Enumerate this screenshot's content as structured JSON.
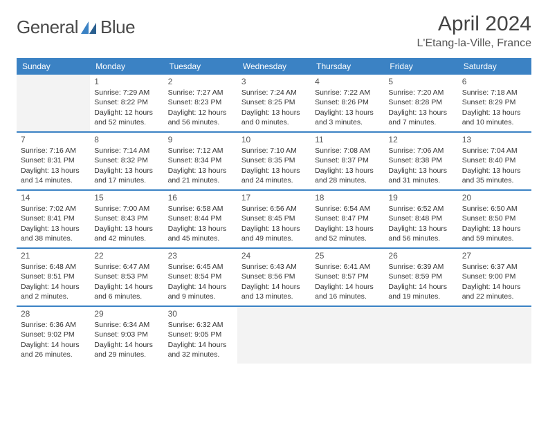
{
  "logo": {
    "word1": "General",
    "word2": "Blue"
  },
  "title": "April 2024",
  "location": "L'Etang-la-Ville, France",
  "colors": {
    "accent": "#3b82c4",
    "text": "#333333",
    "muted": "#555555",
    "empty_bg": "#f3f3f3"
  },
  "day_headers": [
    "Sunday",
    "Monday",
    "Tuesday",
    "Wednesday",
    "Thursday",
    "Friday",
    "Saturday"
  ],
  "weeks": [
    [
      {
        "empty": true
      },
      {
        "n": "1",
        "sr": "Sunrise: 7:29 AM",
        "ss": "Sunset: 8:22 PM",
        "dl": "Daylight: 12 hours and 52 minutes."
      },
      {
        "n": "2",
        "sr": "Sunrise: 7:27 AM",
        "ss": "Sunset: 8:23 PM",
        "dl": "Daylight: 12 hours and 56 minutes."
      },
      {
        "n": "3",
        "sr": "Sunrise: 7:24 AM",
        "ss": "Sunset: 8:25 PM",
        "dl": "Daylight: 13 hours and 0 minutes."
      },
      {
        "n": "4",
        "sr": "Sunrise: 7:22 AM",
        "ss": "Sunset: 8:26 PM",
        "dl": "Daylight: 13 hours and 3 minutes."
      },
      {
        "n": "5",
        "sr": "Sunrise: 7:20 AM",
        "ss": "Sunset: 8:28 PM",
        "dl": "Daylight: 13 hours and 7 minutes."
      },
      {
        "n": "6",
        "sr": "Sunrise: 7:18 AM",
        "ss": "Sunset: 8:29 PM",
        "dl": "Daylight: 13 hours and 10 minutes."
      }
    ],
    [
      {
        "n": "7",
        "sr": "Sunrise: 7:16 AM",
        "ss": "Sunset: 8:31 PM",
        "dl": "Daylight: 13 hours and 14 minutes."
      },
      {
        "n": "8",
        "sr": "Sunrise: 7:14 AM",
        "ss": "Sunset: 8:32 PM",
        "dl": "Daylight: 13 hours and 17 minutes."
      },
      {
        "n": "9",
        "sr": "Sunrise: 7:12 AM",
        "ss": "Sunset: 8:34 PM",
        "dl": "Daylight: 13 hours and 21 minutes."
      },
      {
        "n": "10",
        "sr": "Sunrise: 7:10 AM",
        "ss": "Sunset: 8:35 PM",
        "dl": "Daylight: 13 hours and 24 minutes."
      },
      {
        "n": "11",
        "sr": "Sunrise: 7:08 AM",
        "ss": "Sunset: 8:37 PM",
        "dl": "Daylight: 13 hours and 28 minutes."
      },
      {
        "n": "12",
        "sr": "Sunrise: 7:06 AM",
        "ss": "Sunset: 8:38 PM",
        "dl": "Daylight: 13 hours and 31 minutes."
      },
      {
        "n": "13",
        "sr": "Sunrise: 7:04 AM",
        "ss": "Sunset: 8:40 PM",
        "dl": "Daylight: 13 hours and 35 minutes."
      }
    ],
    [
      {
        "n": "14",
        "sr": "Sunrise: 7:02 AM",
        "ss": "Sunset: 8:41 PM",
        "dl": "Daylight: 13 hours and 38 minutes."
      },
      {
        "n": "15",
        "sr": "Sunrise: 7:00 AM",
        "ss": "Sunset: 8:43 PM",
        "dl": "Daylight: 13 hours and 42 minutes."
      },
      {
        "n": "16",
        "sr": "Sunrise: 6:58 AM",
        "ss": "Sunset: 8:44 PM",
        "dl": "Daylight: 13 hours and 45 minutes."
      },
      {
        "n": "17",
        "sr": "Sunrise: 6:56 AM",
        "ss": "Sunset: 8:45 PM",
        "dl": "Daylight: 13 hours and 49 minutes."
      },
      {
        "n": "18",
        "sr": "Sunrise: 6:54 AM",
        "ss": "Sunset: 8:47 PM",
        "dl": "Daylight: 13 hours and 52 minutes."
      },
      {
        "n": "19",
        "sr": "Sunrise: 6:52 AM",
        "ss": "Sunset: 8:48 PM",
        "dl": "Daylight: 13 hours and 56 minutes."
      },
      {
        "n": "20",
        "sr": "Sunrise: 6:50 AM",
        "ss": "Sunset: 8:50 PM",
        "dl": "Daylight: 13 hours and 59 minutes."
      }
    ],
    [
      {
        "n": "21",
        "sr": "Sunrise: 6:48 AM",
        "ss": "Sunset: 8:51 PM",
        "dl": "Daylight: 14 hours and 2 minutes."
      },
      {
        "n": "22",
        "sr": "Sunrise: 6:47 AM",
        "ss": "Sunset: 8:53 PM",
        "dl": "Daylight: 14 hours and 6 minutes."
      },
      {
        "n": "23",
        "sr": "Sunrise: 6:45 AM",
        "ss": "Sunset: 8:54 PM",
        "dl": "Daylight: 14 hours and 9 minutes."
      },
      {
        "n": "24",
        "sr": "Sunrise: 6:43 AM",
        "ss": "Sunset: 8:56 PM",
        "dl": "Daylight: 14 hours and 13 minutes."
      },
      {
        "n": "25",
        "sr": "Sunrise: 6:41 AM",
        "ss": "Sunset: 8:57 PM",
        "dl": "Daylight: 14 hours and 16 minutes."
      },
      {
        "n": "26",
        "sr": "Sunrise: 6:39 AM",
        "ss": "Sunset: 8:59 PM",
        "dl": "Daylight: 14 hours and 19 minutes."
      },
      {
        "n": "27",
        "sr": "Sunrise: 6:37 AM",
        "ss": "Sunset: 9:00 PM",
        "dl": "Daylight: 14 hours and 22 minutes."
      }
    ],
    [
      {
        "n": "28",
        "sr": "Sunrise: 6:36 AM",
        "ss": "Sunset: 9:02 PM",
        "dl": "Daylight: 14 hours and 26 minutes."
      },
      {
        "n": "29",
        "sr": "Sunrise: 6:34 AM",
        "ss": "Sunset: 9:03 PM",
        "dl": "Daylight: 14 hours and 29 minutes."
      },
      {
        "n": "30",
        "sr": "Sunrise: 6:32 AM",
        "ss": "Sunset: 9:05 PM",
        "dl": "Daylight: 14 hours and 32 minutes."
      },
      {
        "empty": true
      },
      {
        "empty": true
      },
      {
        "empty": true
      },
      {
        "empty": true
      }
    ]
  ]
}
